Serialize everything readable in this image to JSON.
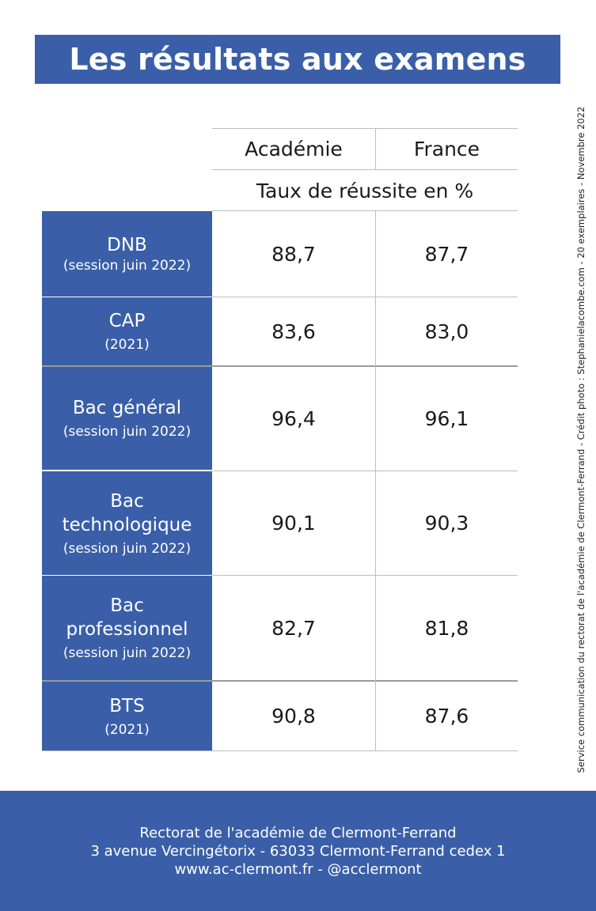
{
  "title": "Les résultats aux examens",
  "side_credit": "Service communication du rectorat de l'académie de Clermont-Ferrand - Crédit photo : Stephanielacombe.com - 20 exemplaires - Novembre 2022",
  "table": {
    "columns": [
      "Académie",
      "France"
    ],
    "subheader": "Taux de réussite en %",
    "rows": [
      {
        "label": "DNB",
        "sub": "(session juin 2022)",
        "academie": "88,7",
        "france": "87,7"
      },
      {
        "label": "CAP",
        "sub": "(2021)",
        "academie": "83,6",
        "france": "83,0"
      },
      {
        "label": "Bac général",
        "sub": "(session juin 2022)",
        "academie": "96,4",
        "france": "96,1"
      },
      {
        "label": "Bac technologique",
        "sub": "(session juin 2022)",
        "academie": "90,1",
        "france": "90,3"
      },
      {
        "label": "Bac professionnel",
        "sub": "(session juin 2022)",
        "academie": "82,7",
        "france": "81,8"
      },
      {
        "label": "BTS",
        "sub": "(2021)",
        "academie": "90,8",
        "france": "87,6"
      }
    ]
  },
  "footer": {
    "line1": "Rectorat de l'académie de Clermont-Ferrand",
    "line2": "3 avenue Vercingétorix - 63033 Clermont-Ferrand cedex 1",
    "line3": "www.ac-clermont.fr - @acclermont"
  }
}
